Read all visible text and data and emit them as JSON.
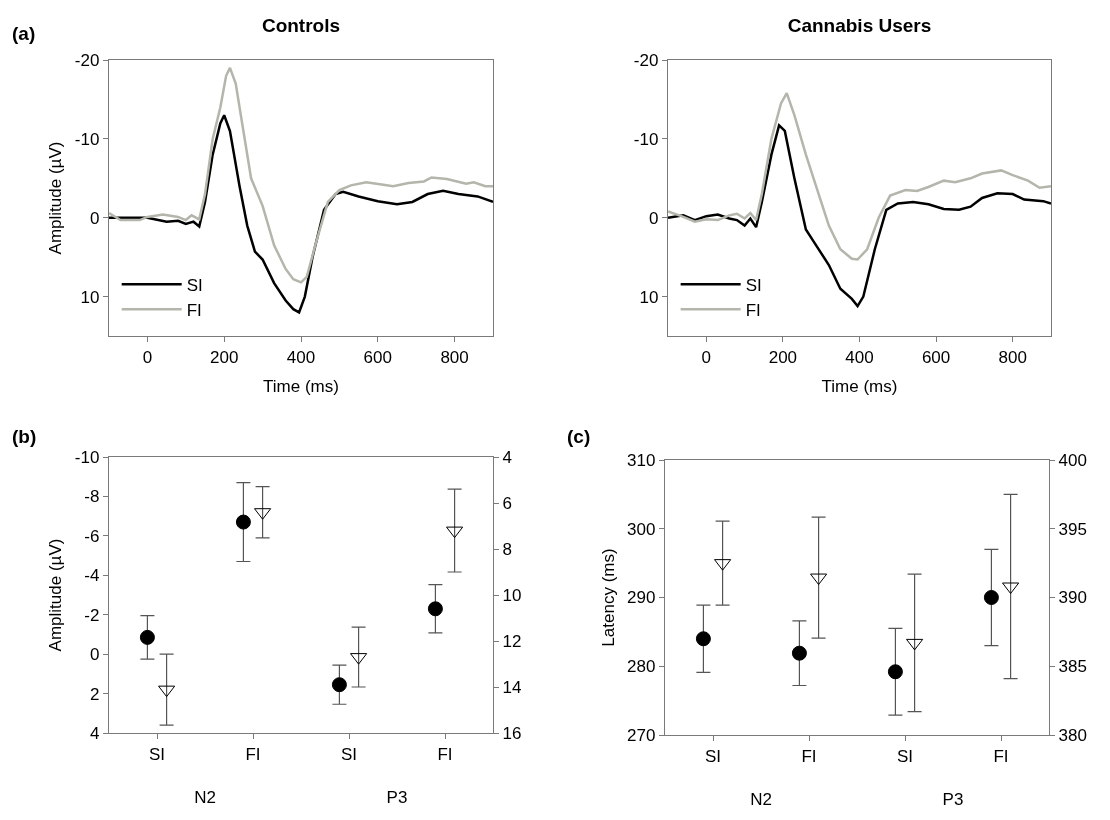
{
  "chart_data": [
    {
      "type": "line",
      "title": "Controls",
      "annotations": [
        "(a)"
      ],
      "xlabel": "Time (ms)",
      "ylabel": "Amplitude (µV)",
      "xlim": [
        -100,
        900
      ],
      "xticks": [
        0,
        200,
        400,
        600,
        800
      ],
      "ylim": [
        15,
        -20
      ],
      "yticks": [
        -20,
        -10,
        0,
        10
      ],
      "legend": "bottom left",
      "series": [
        {
          "name": "SI",
          "color": "#000000",
          "x": [
            -100,
            -50,
            0,
            50,
            80,
            100,
            120,
            135,
            150,
            170,
            190,
            200,
            215,
            240,
            260,
            280,
            300,
            330,
            360,
            380,
            395,
            410,
            430,
            460,
            490,
            510,
            550,
            600,
            650,
            690,
            730,
            770,
            810,
            860,
            900
          ],
          "values": [
            0,
            0,
            0,
            0.5,
            0.4,
            0.8,
            0.5,
            1.1,
            -2,
            -8,
            -12,
            -13,
            -11,
            -4,
            1,
            4.3,
            5.3,
            8.3,
            10.5,
            11.6,
            12,
            10,
            5,
            -1,
            -3,
            -3.3,
            -2.7,
            -2.1,
            -1.7,
            -2,
            -3,
            -3.4,
            -3,
            -2.7,
            -2
          ]
        },
        {
          "name": "FI",
          "color": "#b4b5ab",
          "x": [
            -100,
            -70,
            -20,
            0,
            40,
            80,
            100,
            115,
            135,
            150,
            170,
            190,
            205,
            215,
            230,
            250,
            270,
            300,
            330,
            360,
            380,
            400,
            415,
            440,
            470,
            500,
            530,
            570,
            610,
            640,
            680,
            720,
            740,
            780,
            830,
            850,
            880,
            900
          ],
          "values": [
            -0.6,
            0.3,
            0.3,
            -0.1,
            -0.4,
            -0.1,
            0.3,
            -0.3,
            0.2,
            -3,
            -10,
            -14,
            -18,
            -19,
            -17,
            -11,
            -5,
            -1.5,
            3.5,
            6.5,
            7.8,
            8.2,
            7.5,
            3,
            -2,
            -3.5,
            -4.1,
            -4.5,
            -4.2,
            -4,
            -4.4,
            -4.6,
            -5.1,
            -4.9,
            -4.3,
            -4.5,
            -4,
            -4
          ]
        }
      ]
    },
    {
      "type": "line",
      "title": "Cannabis Users",
      "xlabel": "Time (ms)",
      "xlim": [
        -100,
        900
      ],
      "xticks": [
        0,
        200,
        400,
        600,
        800
      ],
      "ylim": [
        15,
        -20
      ],
      "yticks": [
        -20,
        -10,
        0,
        10
      ],
      "legend": "bottom left",
      "series": [
        {
          "name": "SI",
          "color": "#000000",
          "x": [
            -100,
            -60,
            -30,
            0,
            30,
            60,
            80,
            100,
            115,
            130,
            145,
            170,
            190,
            205,
            230,
            260,
            280,
            320,
            350,
            380,
            395,
            410,
            440,
            470,
            500,
            540,
            580,
            620,
            660,
            690,
            720,
            760,
            800,
            830,
            880,
            900
          ],
          "values": [
            0,
            -0.3,
            0.3,
            -0.2,
            -0.4,
            0.1,
            0.3,
            1,
            0.1,
            1.2,
            -2,
            -8,
            -11.7,
            -11,
            -5,
            1.5,
            3,
            6,
            9,
            10.3,
            11.2,
            10,
            4,
            -1,
            -1.8,
            -2,
            -1.7,
            -1.1,
            -1,
            -1.4,
            -2.5,
            -3.1,
            -3,
            -2.3,
            -2.1,
            -1.8
          ]
        },
        {
          "name": "FI",
          "color": "#b4b5ab",
          "x": [
            -100,
            -60,
            -30,
            0,
            30,
            60,
            80,
            100,
            115,
            130,
            145,
            170,
            195,
            210,
            230,
            260,
            290,
            320,
            350,
            380,
            395,
            420,
            450,
            480,
            520,
            550,
            580,
            620,
            650,
            690,
            720,
            770,
            800,
            840,
            870,
            900
          ],
          "values": [
            -0.8,
            -0.1,
            0.5,
            0.2,
            0.3,
            -0.3,
            -0.5,
            0.1,
            -0.6,
            0.3,
            -3,
            -10,
            -14.5,
            -15.8,
            -13,
            -8,
            -3.5,
            1,
            4,
            5.2,
            5.3,
            4,
            0,
            -2.8,
            -3.5,
            -3.4,
            -3.9,
            -4.7,
            -4.5,
            -5,
            -5.6,
            -6,
            -5.4,
            -4.7,
            -3.8,
            -4
          ]
        }
      ]
    },
    {
      "type": "scatter",
      "annotations": [
        "(b)"
      ],
      "categories": [
        "SI",
        "FI"
      ],
      "xlabel": "N2",
      "ylabel": "Amplitude (µV)",
      "ylim": [
        4,
        -10
      ],
      "yticks": [
        -10,
        -8,
        -6,
        -4,
        -2,
        0,
        2,
        4
      ],
      "series": [
        {
          "color": "#000000",
          "marker": "circle",
          "values": [
            -0.85,
            -6.7
          ],
          "errors": [
            1.1,
            2.0
          ]
        },
        {
          "color": "#000000",
          "marker": "triangle",
          "values": [
            1.8,
            -7.2
          ],
          "errors": [
            1.8,
            1.3
          ]
        }
      ]
    },
    {
      "type": "scatter",
      "categories": [
        "SI",
        "FI"
      ],
      "xlabel": "P3",
      "y2lim": [
        16,
        4
      ],
      "y2ticks": [
        4,
        6,
        8,
        10,
        12,
        14,
        16
      ],
      "series": [
        {
          "color": "#000000",
          "marker": "circle",
          "axis": "y2",
          "values": [
            13.9,
            10.6
          ],
          "errors": [
            0.85,
            1.05
          ]
        },
        {
          "color": "#000000",
          "marker": "triangle",
          "axis": "y2",
          "values": [
            12.7,
            7.2
          ],
          "errors": [
            1.3,
            1.8
          ]
        }
      ]
    },
    {
      "type": "scatter",
      "annotations": [
        "(c)"
      ],
      "categories": [
        "SI",
        "FI"
      ],
      "xlabel": "N2",
      "ylabel": "Latency (ms)",
      "ylim": [
        270,
        310
      ],
      "yticks": [
        270,
        280,
        290,
        300,
        310
      ],
      "series": [
        {
          "color": "#000000",
          "marker": "circle",
          "values": [
            284,
            281.9
          ],
          "errors": [
            4.9,
            4.7
          ]
        },
        {
          "color": "#000000",
          "marker": "triangle",
          "values": [
            295,
            292.9
          ],
          "errors": [
            6.1,
            8.8
          ]
        }
      ]
    },
    {
      "type": "scatter",
      "categories": [
        "SI",
        "FI"
      ],
      "xlabel": "P3",
      "y2lim": [
        380,
        400
      ],
      "y2ticks": [
        380,
        385,
        390,
        395,
        400
      ],
      "series": [
        {
          "color": "#000000",
          "marker": "circle",
          "axis": "y2",
          "values": [
            384.6,
            390
          ],
          "errors": [
            3.15,
            3.5
          ]
        },
        {
          "color": "#000000",
          "marker": "triangle",
          "axis": "y2",
          "values": [
            386.7,
            390.8
          ],
          "errors": [
            5,
            6.7
          ]
        }
      ]
    }
  ]
}
